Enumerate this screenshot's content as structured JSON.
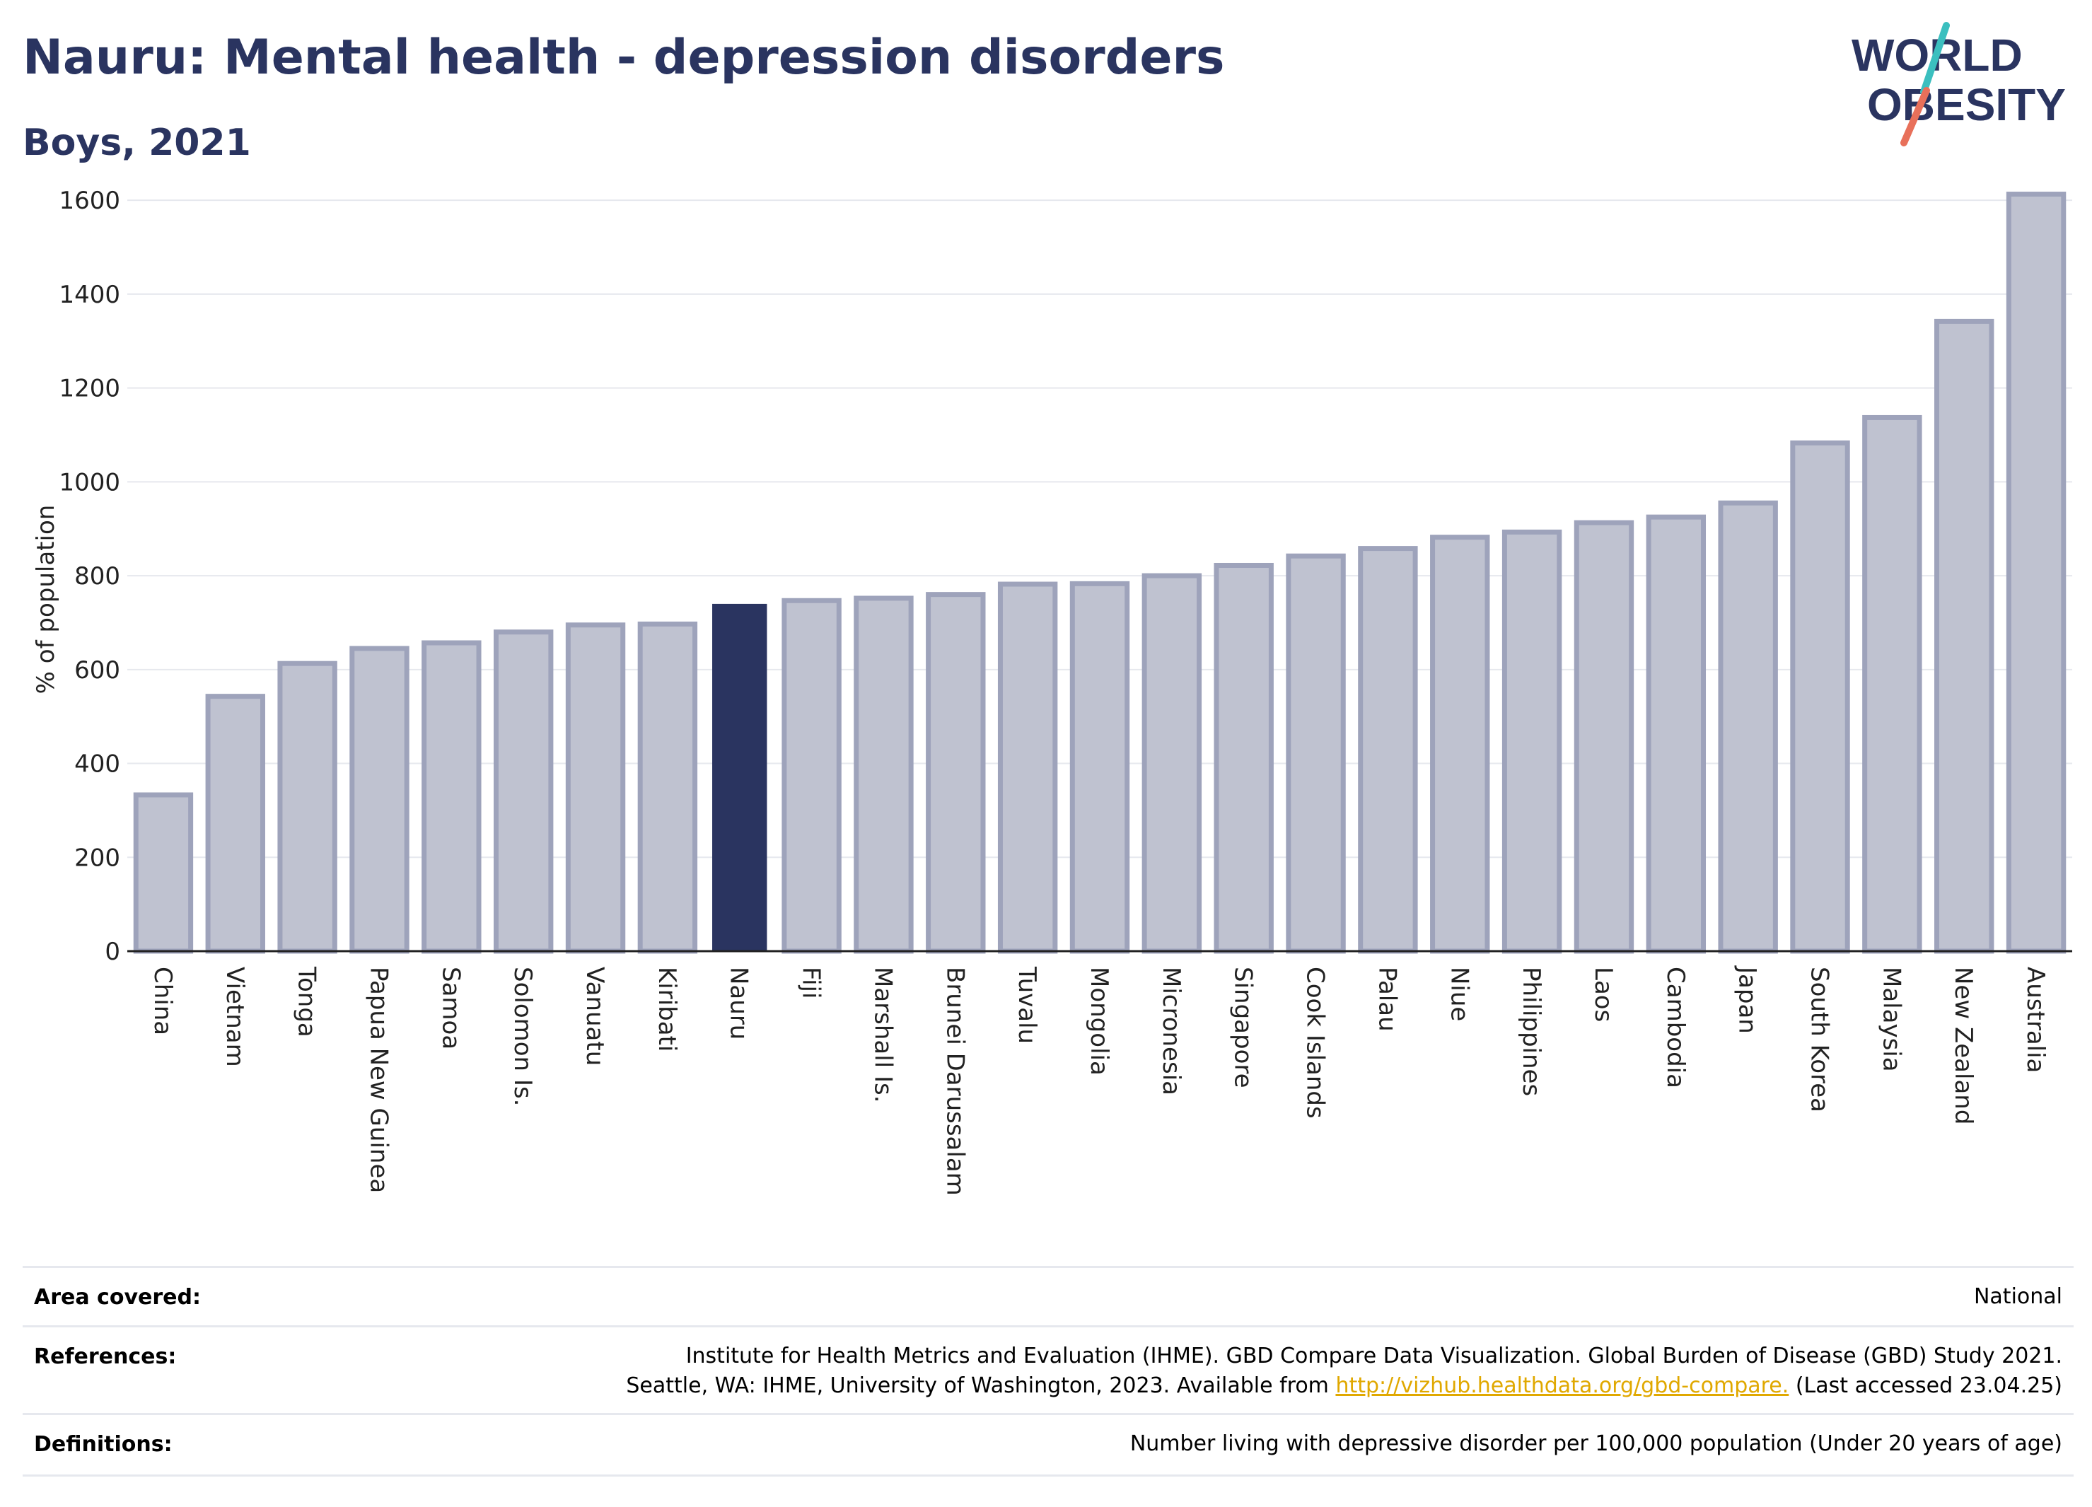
{
  "header": {
    "title": "Nauru: Mental health - depression disorders",
    "subtitle": "Boys, 2021"
  },
  "logo": {
    "line1": "WORLD",
    "line2": "OBESITY",
    "colors": {
      "text": "#2a3460",
      "teal": "#3bbfbf",
      "coral": "#e8705a"
    }
  },
  "colors": {
    "highlight_bar": "#2a3460",
    "bar_fill": "#bfc2d0",
    "bar_stroke": "#9ea3bb",
    "gridline": "#e6e8ee",
    "link": "#e0a800"
  },
  "chart_data": {
    "type": "bar",
    "ylabel": "% of population",
    "ylim": [
      0,
      1650
    ],
    "yticks": [
      0,
      200,
      400,
      600,
      800,
      1000,
      1200,
      1400,
      1600
    ],
    "grid": true,
    "highlight": "Nauru",
    "categories": [
      "China",
      "Vietnam",
      "Tonga",
      "Papua New Guinea",
      "Samoa",
      "Solomon Is.",
      "Vanuatu",
      "Kiribati",
      "Nauru",
      "Fiji",
      "Marshall Is.",
      "Brunei Darussalam",
      "Tuvalu",
      "Mongolia",
      "Micronesia",
      "Singapore",
      "Cook Islands",
      "Palau",
      "Niue",
      "Philippines",
      "Laos",
      "Cambodia",
      "Japan",
      "South Korea",
      "Malaysia",
      "New Zealand",
      "Australia"
    ],
    "values": [
      333,
      543,
      613,
      645,
      657,
      680,
      695,
      697,
      740,
      747,
      752,
      760,
      782,
      783,
      800,
      822,
      842,
      858,
      882,
      893,
      913,
      925,
      955,
      1083,
      1137,
      1342,
      1613
    ]
  },
  "info": {
    "area": {
      "label": "Area covered:",
      "value": "National"
    },
    "references": {
      "label": "References:",
      "line1": "Institute for Health Metrics and Evaluation (IHME). GBD Compare Data Visualization. Global Burden of Disease (GBD) Study 2021.",
      "line2_prefix": "Seattle, WA: IHME, University of Washington, 2023. Available from ",
      "link": "http://vizhub.healthdata.org/gbd-compare.",
      "line2_suffix": " (Last accessed 23.04.25)"
    },
    "definitions": {
      "label": "Definitions:",
      "value": "Number living with depressive disorder per 100,000 population (Under 20 years of age)"
    }
  }
}
